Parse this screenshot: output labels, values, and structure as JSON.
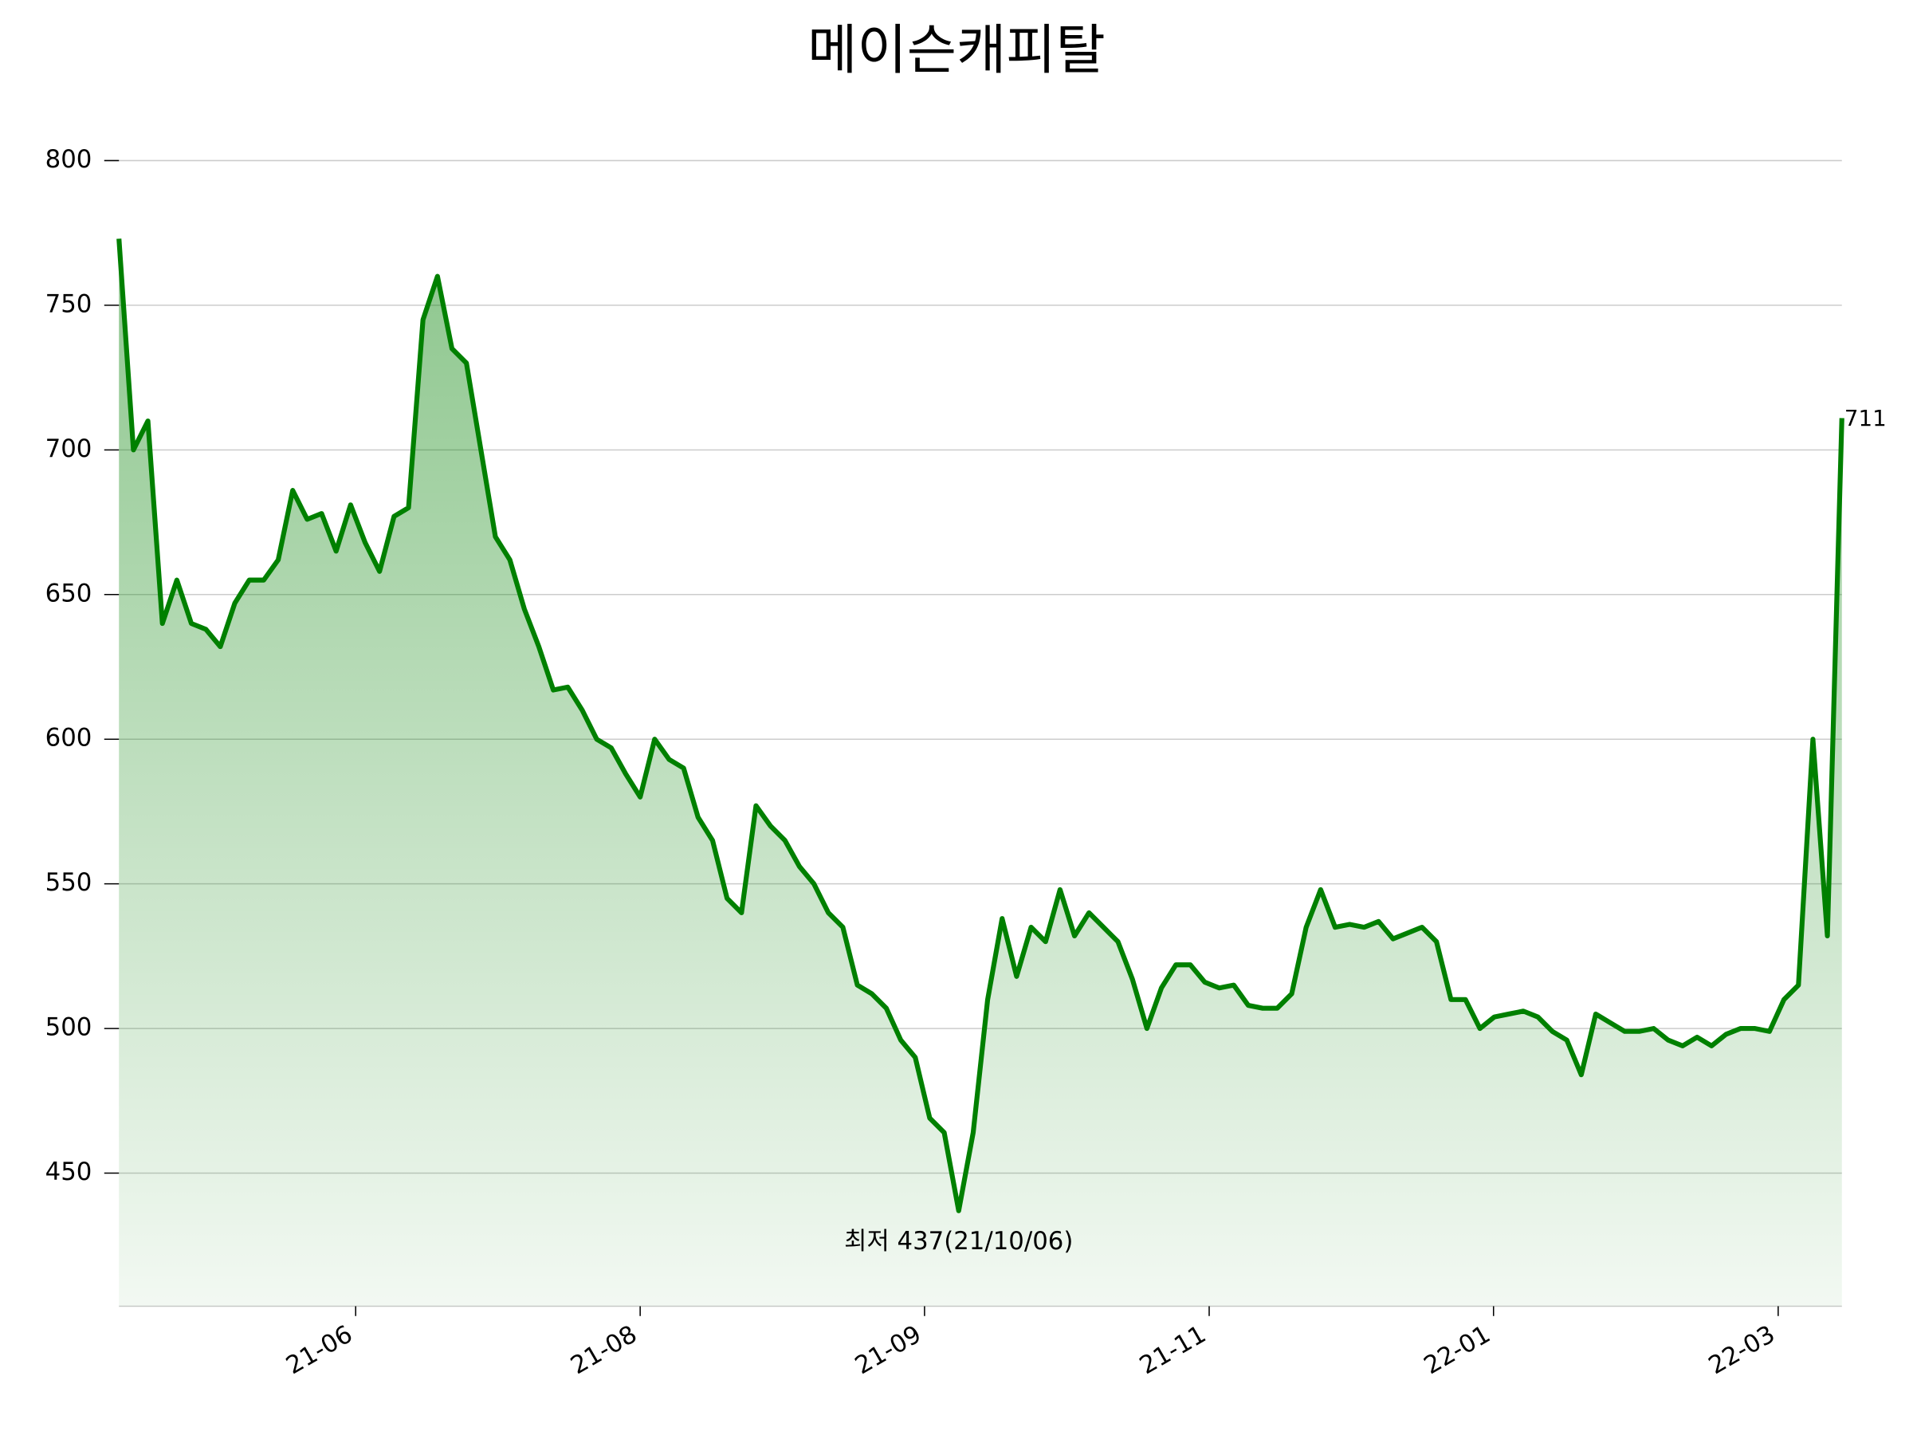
{
  "chart_data": {
    "type": "line",
    "title": "메이슨캐피탈",
    "annotation": "최저 437(21/10/06)",
    "color": "#008000",
    "annotation_color": "#0000ff",
    "grid": true,
    "xlim": [
      0,
      119
    ],
    "ylim": [
      404,
      811
    ],
    "yticks": [
      450,
      500,
      550,
      600,
      650,
      700,
      750,
      800
    ],
    "xticks": [
      {
        "value": 16.35,
        "label": "21-06"
      },
      {
        "value": 36.0,
        "label": "21-08"
      },
      {
        "value": 55.64,
        "label": "21-09"
      },
      {
        "value": 75.3,
        "label": "21-11"
      },
      {
        "value": 94.94,
        "label": "22-01"
      },
      {
        "value": 114.6,
        "label": "22-03"
      }
    ],
    "values": [
      773,
      700,
      710,
      640,
      655,
      640,
      638,
      632,
      647,
      655,
      655,
      662,
      686,
      676,
      678,
      665,
      681,
      668,
      658,
      677,
      680,
      745,
      760,
      735,
      730,
      700,
      670,
      662,
      645,
      632,
      617,
      618,
      610,
      600,
      597,
      588,
      580,
      600,
      593,
      590,
      573,
      565,
      545,
      540,
      577,
      570,
      565,
      556,
      550,
      540,
      535,
      515,
      512,
      507,
      496,
      490,
      469,
      464,
      437,
      464,
      510,
      538,
      518,
      535,
      530,
      548,
      532,
      540,
      535,
      530,
      517,
      500,
      514,
      522,
      522,
      516,
      514,
      515,
      508,
      507,
      507,
      512,
      535,
      548,
      535,
      536,
      535,
      537,
      531,
      533,
      535,
      530,
      510,
      510,
      500,
      504,
      505,
      506,
      504,
      499,
      496,
      484,
      505,
      502,
      499,
      499,
      500,
      496,
      494,
      497,
      494,
      498,
      500,
      500,
      499,
      510,
      515,
      600,
      532,
      711
    ]
  }
}
